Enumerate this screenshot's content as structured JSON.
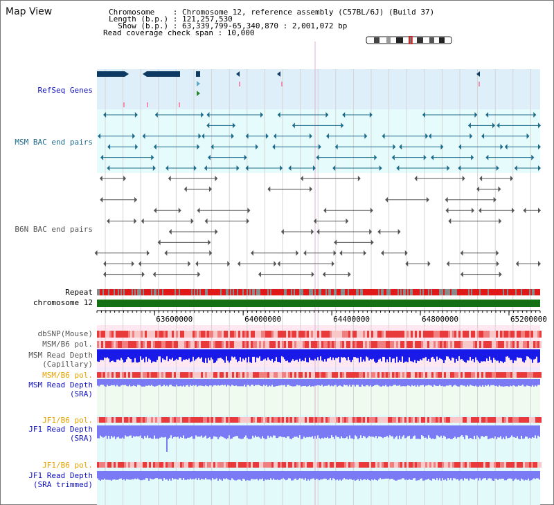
{
  "page": {
    "title": "Map View"
  },
  "header": {
    "line1": "Chromosome    : Chromosome 12, reference assembly (C57BL/6J) (Build 37)",
    "line2": "Length (b.p.) : 121,257,530",
    "line3": "  Show (b.p.) : 63,339,799-65,340,870 : 2,001,072 bp",
    "line4": "Read coverage check span : 10,000"
  },
  "tracks": {
    "refseq": "RefSeq Genes",
    "msm_bac": "MSM BAC end pairs",
    "b6n_bac": "B6N BAC end pairs",
    "repeat": "Repeat",
    "chromosome": "chromosome 12",
    "dbsnp": "dbSNP(Mouse)",
    "msm_b6_pol_1": "MSM/B6 pol.",
    "msm_read_depth_cap_1": "MSM Read Depth",
    "msm_read_depth_cap_2": "(Capillary)",
    "msm_b6_pol_2": "MSM/B6 pol.",
    "msm_read_depth_sra_1": "MSM Read Depth",
    "msm_read_depth_sra_2": "(SRA)",
    "jf1_b6_pol_1": "JF1/B6 pol.",
    "jf1_read_depth_1": "JF1 Read Depth",
    "jf1_read_depth_2": "(SRA)",
    "jf1_b6_pol_2": "JF1/B6 pol.",
    "jf1_trimmed_1": "JF1 Read Depth",
    "jf1_trimmed_2": "(SRA trimmed)"
  },
  "axis": {
    "ticks": [
      "63600000",
      "64000000",
      "64400000",
      "64800000",
      "65200000"
    ],
    "tick_values": [
      63600000,
      64000000,
      64400000,
      64800000,
      65200000
    ],
    "range": [
      63339799,
      65340870
    ]
  },
  "colors": {
    "refseq": "#0d3a63",
    "msm": "#1d6b8a",
    "b6n": "#555555",
    "repeat_red": "#e01818",
    "repeat_gray": "#8a8a8a",
    "chromosome": "#157015",
    "depth_cap": "#1a1ae8",
    "depth_sra": "#7a7af5",
    "pol_dark": "#e83a3a",
    "pol_light": "#f8c8c8"
  }
}
